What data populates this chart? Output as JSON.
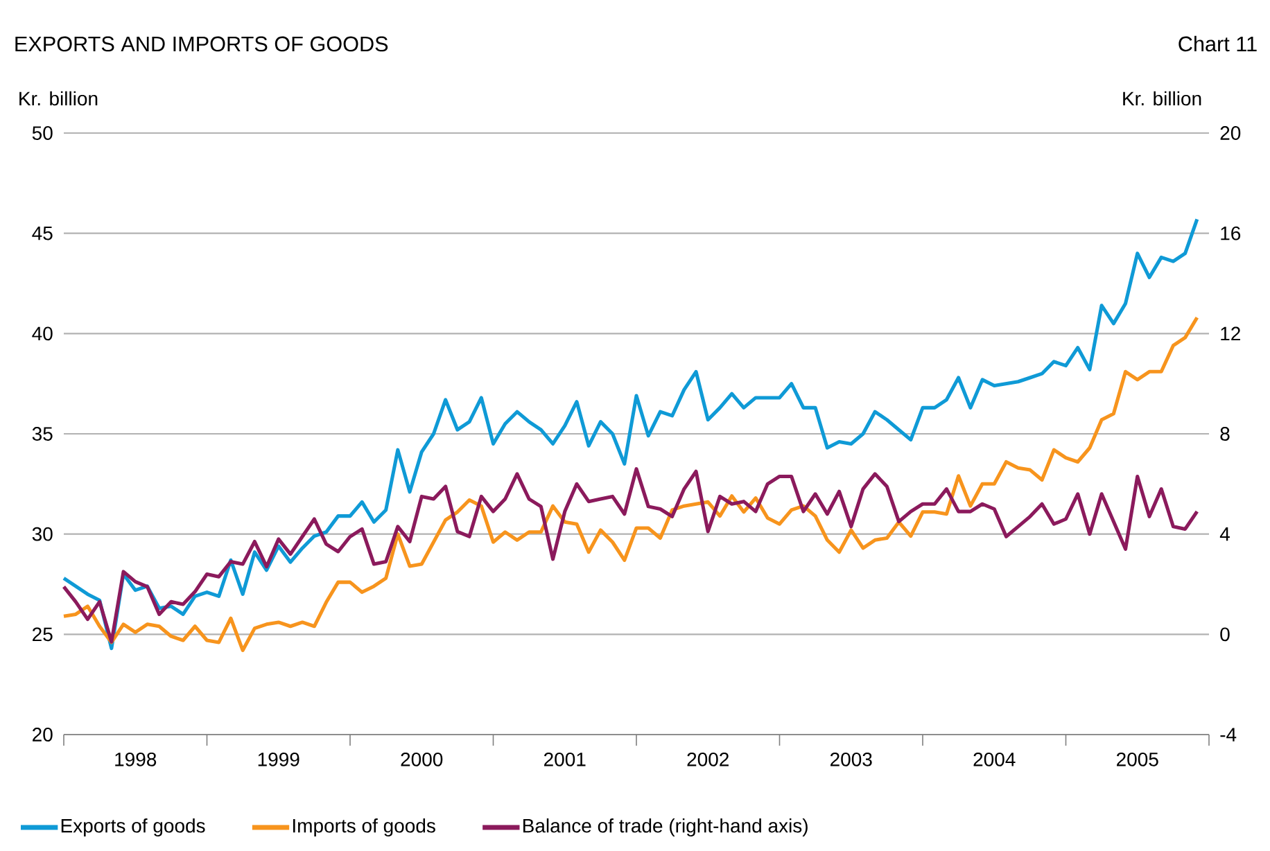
{
  "chart_data": {
    "type": "line",
    "title": "EXPORTS AND IMPORTS OF GOODS",
    "annotations": [
      "Chart 11"
    ],
    "ylabel": "Kr. billion",
    "y2label": "Kr. billion",
    "x": [
      "1998-01",
      "1998-02",
      "1998-03",
      "1998-04",
      "1998-05",
      "1998-06",
      "1998-07",
      "1998-08",
      "1998-09",
      "1998-10",
      "1998-11",
      "1998-12",
      "1999-01",
      "1999-02",
      "1999-03",
      "1999-04",
      "1999-05",
      "1999-06",
      "1999-07",
      "1999-08",
      "1999-09",
      "1999-10",
      "1999-11",
      "1999-12",
      "2000-01",
      "2000-02",
      "2000-03",
      "2000-04",
      "2000-05",
      "2000-06",
      "2000-07",
      "2000-08",
      "2000-09",
      "2000-10",
      "2000-11",
      "2000-12",
      "2001-01",
      "2001-02",
      "2001-03",
      "2001-04",
      "2001-05",
      "2001-06",
      "2001-07",
      "2001-08",
      "2001-09",
      "2001-10",
      "2001-11",
      "2001-12",
      "2002-01",
      "2002-02",
      "2002-03",
      "2002-04",
      "2002-05",
      "2002-06",
      "2002-07",
      "2002-08",
      "2002-09",
      "2002-10",
      "2002-11",
      "2002-12",
      "2003-01",
      "2003-02",
      "2003-03",
      "2003-04",
      "2003-05",
      "2003-06",
      "2003-07",
      "2003-08",
      "2003-09",
      "2003-10",
      "2003-11",
      "2003-12",
      "2004-01",
      "2004-02",
      "2004-03",
      "2004-04",
      "2004-05",
      "2004-06",
      "2004-07",
      "2004-08",
      "2004-09",
      "2004-10",
      "2004-11",
      "2004-12",
      "2005-01",
      "2005-02",
      "2005-03",
      "2005-04",
      "2005-05",
      "2005-06",
      "2005-07",
      "2005-08",
      "2005-09",
      "2005-10",
      "2005-11",
      "2005-12"
    ],
    "xlim": [
      "1998-01",
      "2006-01"
    ],
    "xticks": [
      {
        "value": "1998-01",
        "label": null
      },
      {
        "value": "1998-07",
        "label": "1998"
      },
      {
        "value": "1999-01",
        "label": null
      },
      {
        "value": "1999-07",
        "label": "1999"
      },
      {
        "value": "2000-01",
        "label": null
      },
      {
        "value": "2000-07",
        "label": "2000"
      },
      {
        "value": "2001-01",
        "label": null
      },
      {
        "value": "2001-07",
        "label": "2001"
      },
      {
        "value": "2002-01",
        "label": null
      },
      {
        "value": "2002-07",
        "label": "2002"
      },
      {
        "value": "2003-01",
        "label": null
      },
      {
        "value": "2003-07",
        "label": "2003"
      },
      {
        "value": "2004-01",
        "label": null
      },
      {
        "value": "2004-07",
        "label": "2004"
      },
      {
        "value": "2005-01",
        "label": null
      },
      {
        "value": "2005-07",
        "label": "2005"
      },
      {
        "value": "2006-01",
        "label": null
      }
    ],
    "ylim": [
      20,
      50
    ],
    "yticks": [
      20,
      25,
      30,
      35,
      40,
      45,
      50
    ],
    "y2lim": [
      -4,
      20
    ],
    "y2ticks": [
      -4,
      0,
      4,
      8,
      12,
      16,
      20
    ],
    "grid": "y",
    "legend": "bottom",
    "series": [
      {
        "name": "Exports of goods",
        "color": "#0f9ad6",
        "values": [
          27.8,
          27.4,
          27.0,
          26.7,
          24.3,
          28.0,
          27.2,
          27.4,
          26.3,
          26.4,
          26.0,
          26.9,
          27.1,
          26.9,
          28.7,
          27.0,
          29.1,
          28.2,
          29.4,
          28.6,
          29.3,
          29.9,
          30.1,
          30.9,
          30.9,
          31.6,
          30.6,
          31.2,
          34.2,
          32.1,
          34.1,
          35.0,
          36.7,
          35.2,
          35.6,
          36.8,
          34.5,
          35.5,
          36.1,
          35.6,
          35.2,
          34.5,
          35.4,
          36.6,
          34.4,
          35.6,
          35.0,
          33.5,
          36.9,
          34.9,
          36.1,
          35.9,
          37.2,
          38.1,
          35.7,
          36.3,
          37.0,
          36.3,
          36.8,
          36.8,
          36.8,
          37.5,
          36.3,
          36.3,
          34.3,
          34.6,
          34.5,
          35.0,
          36.1,
          35.7,
          35.2,
          34.7,
          36.3,
          36.3,
          36.7,
          37.8,
          36.3,
          37.7,
          37.4,
          37.5,
          37.6,
          37.8,
          38.0,
          38.6,
          38.4,
          39.3,
          38.2,
          41.4,
          40.5,
          41.5,
          44.0,
          42.8,
          43.8,
          43.6,
          44.0,
          45.7
        ]
      },
      {
        "name": "Imports of goods",
        "color": "#f7941d",
        "values": [
          25.9,
          26.0,
          26.4,
          25.4,
          24.6,
          25.5,
          25.1,
          25.5,
          25.4,
          24.9,
          24.7,
          25.4,
          24.7,
          24.6,
          25.8,
          24.2,
          25.3,
          25.5,
          25.6,
          25.4,
          25.6,
          25.4,
          26.6,
          27.6,
          27.6,
          27.1,
          27.4,
          27.8,
          30.0,
          28.4,
          28.5,
          29.6,
          30.7,
          31.1,
          31.7,
          31.4,
          29.6,
          30.1,
          29.7,
          30.1,
          30.1,
          31.4,
          30.6,
          30.5,
          29.1,
          30.2,
          29.6,
          28.7,
          30.3,
          30.3,
          29.8,
          31.2,
          31.4,
          31.5,
          31.6,
          30.9,
          31.9,
          31.1,
          31.8,
          30.8,
          30.5,
          31.2,
          31.4,
          30.9,
          29.7,
          29.1,
          30.2,
          29.3,
          29.7,
          29.8,
          30.6,
          29.9,
          31.1,
          31.1,
          31.0,
          32.9,
          31.4,
          32.5,
          32.5,
          33.6,
          33.3,
          33.2,
          32.7,
          34.2,
          33.8,
          33.6,
          34.3,
          35.7,
          36.0,
          38.1,
          37.7,
          38.1,
          38.1,
          39.4,
          39.8,
          40.8
        ]
      },
      {
        "name": "Balance of trade (right-hand axis)",
        "color": "#8b1a5c",
        "axis": "y2",
        "values": [
          1.9,
          1.3,
          0.6,
          1.3,
          -0.3,
          2.5,
          2.1,
          1.9,
          0.8,
          1.3,
          1.2,
          1.7,
          2.4,
          2.3,
          2.9,
          2.8,
          3.7,
          2.7,
          3.8,
          3.2,
          3.9,
          4.6,
          3.6,
          3.3,
          3.9,
          4.2,
          2.8,
          2.9,
          4.3,
          3.7,
          5.5,
          5.4,
          5.9,
          4.1,
          3.9,
          5.5,
          4.9,
          5.4,
          6.4,
          5.4,
          5.1,
          3.0,
          4.9,
          6.0,
          5.3,
          5.4,
          5.5,
          4.8,
          6.6,
          5.1,
          5.0,
          4.7,
          5.8,
          6.5,
          4.1,
          5.5,
          5.2,
          5.3,
          4.9,
          6.0,
          6.3,
          6.3,
          4.9,
          5.6,
          4.8,
          5.7,
          4.3,
          5.8,
          6.4,
          5.9,
          4.5,
          4.9,
          5.2,
          5.2,
          5.8,
          4.9,
          4.9,
          5.2,
          5.0,
          3.9,
          4.3,
          4.7,
          5.2,
          4.4,
          4.6,
          5.6,
          4.0,
          5.6,
          4.5,
          3.4,
          6.3,
          4.7,
          5.8,
          4.3,
          4.2,
          4.9
        ]
      }
    ]
  }
}
